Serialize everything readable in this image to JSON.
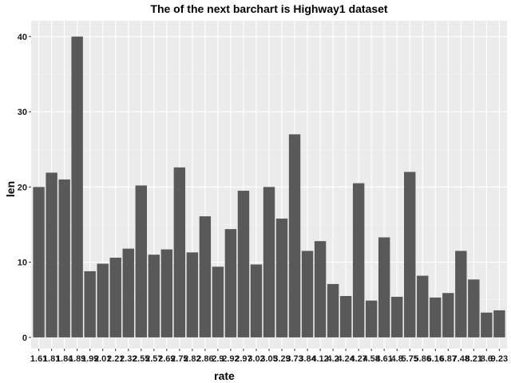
{
  "chart_data": {
    "type": "bar",
    "title": "The of the next barchart is Highway1 dataset",
    "xlabel": "rate",
    "ylabel": "len",
    "ylim": [
      -1.5,
      42.1
    ],
    "yticks": [
      0,
      10,
      20,
      30,
      40
    ],
    "grid": true,
    "legend": "none",
    "categories": [
      "1.61",
      "1.81",
      "1.84",
      "1.89",
      "1.99",
      "2.01",
      "2.21",
      "2.32",
      "2.55",
      "2.57",
      "2.69",
      "2.75",
      "2.82",
      "2.86",
      "2.9",
      "2.92",
      "2.97",
      "3.02",
      "3.05",
      "3.29",
      "3.73",
      "3.84",
      "4.12",
      "4.2",
      "4.24",
      "4.27",
      "4.58",
      "4.61",
      "4.8",
      "5.75",
      "5.86",
      "6.16",
      "6.87",
      "7.48",
      "8.21",
      "8.6",
      "9.23"
    ],
    "values": [
      20.0,
      21.9,
      21.0,
      40.0,
      8.8,
      9.8,
      10.6,
      11.8,
      20.2,
      11.0,
      11.7,
      22.6,
      11.3,
      16.1,
      9.4,
      14.4,
      19.5,
      9.7,
      20.0,
      15.8,
      27.0,
      11.5,
      12.8,
      7.1,
      5.5,
      20.5,
      4.9,
      13.3,
      5.4,
      22.0,
      8.2,
      5.3,
      5.9,
      11.5,
      7.7,
      3.3,
      3.6
    ],
    "colors": {
      "panel": "#ebebeb",
      "grid_major": "#ffffff",
      "grid_minor": "#f5f5f5",
      "bar": "#595959"
    }
  }
}
